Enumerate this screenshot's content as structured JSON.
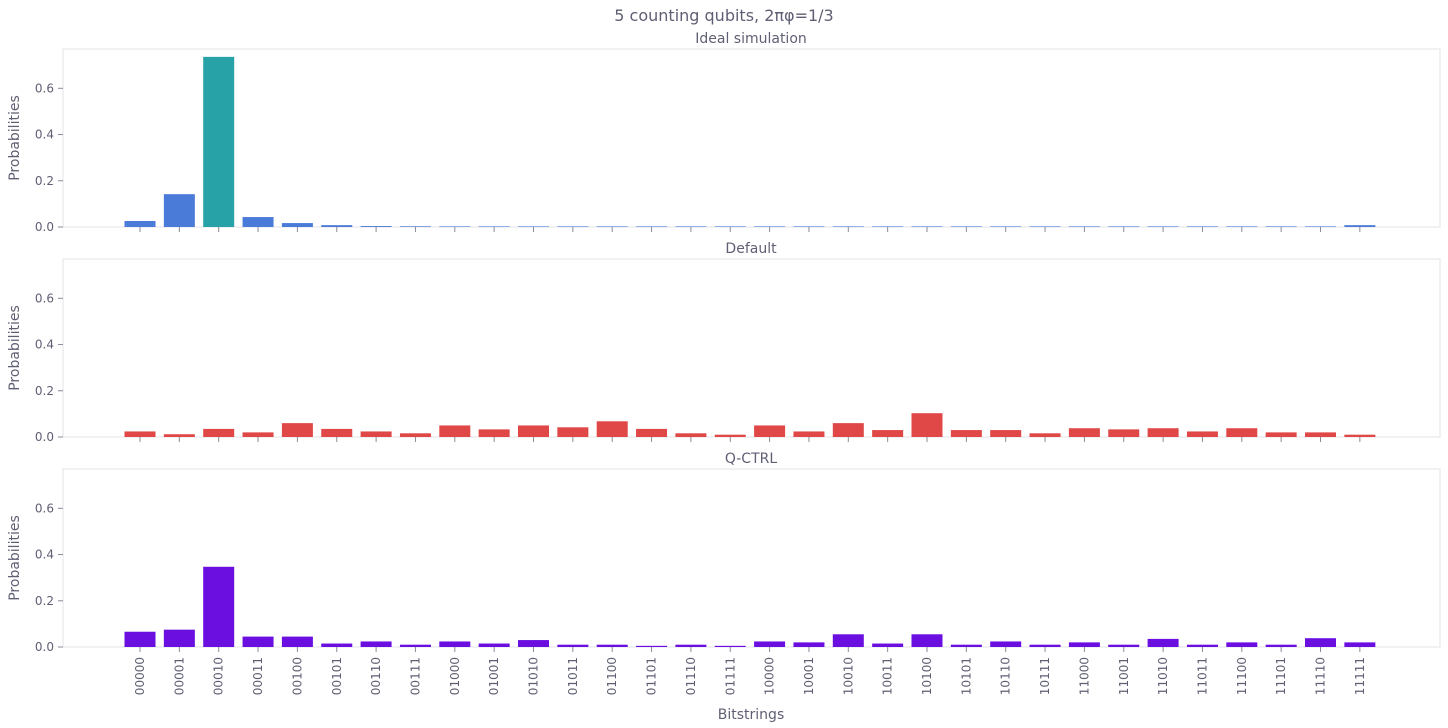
{
  "chart_data": {
    "type": "bar",
    "suptitle": "5 counting qubits, 2πφ=1/3",
    "xlabel": "Bitstrings",
    "ylabel": "Probabilities",
    "ylim": [
      0,
      0.77
    ],
    "yticks": [
      0.0,
      0.2,
      0.4,
      0.6
    ],
    "ytick_labels": [
      "0.0",
      "0.2",
      "0.4",
      "0.6"
    ],
    "grid": false,
    "categories": [
      "00000",
      "00001",
      "00010",
      "00011",
      "00100",
      "00101",
      "00110",
      "00111",
      "01000",
      "01001",
      "01010",
      "01011",
      "01100",
      "01101",
      "01110",
      "01111",
      "10000",
      "10001",
      "10010",
      "10011",
      "10100",
      "10101",
      "10110",
      "10111",
      "11000",
      "11001",
      "11010",
      "11011",
      "11100",
      "11101",
      "11110",
      "11111"
    ],
    "panels": [
      {
        "title": "Ideal simulation",
        "color": "#4a7bd8",
        "highlight_color": "#27a3a8",
        "highlight_index": 2,
        "values": [
          0.026,
          0.142,
          0.736,
          0.043,
          0.017,
          0.008,
          0.004,
          0.003,
          0.002,
          0.002,
          0.001,
          0.001,
          0.001,
          0.001,
          0.001,
          0.001,
          0.001,
          0.001,
          0.001,
          0.001,
          0.001,
          0.001,
          0.001,
          0.001,
          0.001,
          0.001,
          0.001,
          0.001,
          0.001,
          0.001,
          0.002,
          0.008
        ]
      },
      {
        "title": "Default",
        "color": "#e04848",
        "values": [
          0.024,
          0.012,
          0.035,
          0.02,
          0.06,
          0.035,
          0.024,
          0.016,
          0.05,
          0.033,
          0.05,
          0.042,
          0.068,
          0.035,
          0.016,
          0.01,
          0.05,
          0.024,
          0.06,
          0.03,
          0.103,
          0.03,
          0.03,
          0.016,
          0.038,
          0.033,
          0.038,
          0.024,
          0.038,
          0.02,
          0.02,
          0.01
        ]
      },
      {
        "title": "Q-CTRL",
        "color": "#6a0fe0",
        "values": [
          0.066,
          0.075,
          0.347,
          0.045,
          0.045,
          0.015,
          0.024,
          0.01,
          0.024,
          0.015,
          0.03,
          0.01,
          0.01,
          0.005,
          0.01,
          0.005,
          0.024,
          0.02,
          0.055,
          0.015,
          0.055,
          0.01,
          0.024,
          0.01,
          0.02,
          0.01,
          0.035,
          0.01,
          0.02,
          0.01,
          0.038,
          0.02
        ]
      }
    ]
  }
}
